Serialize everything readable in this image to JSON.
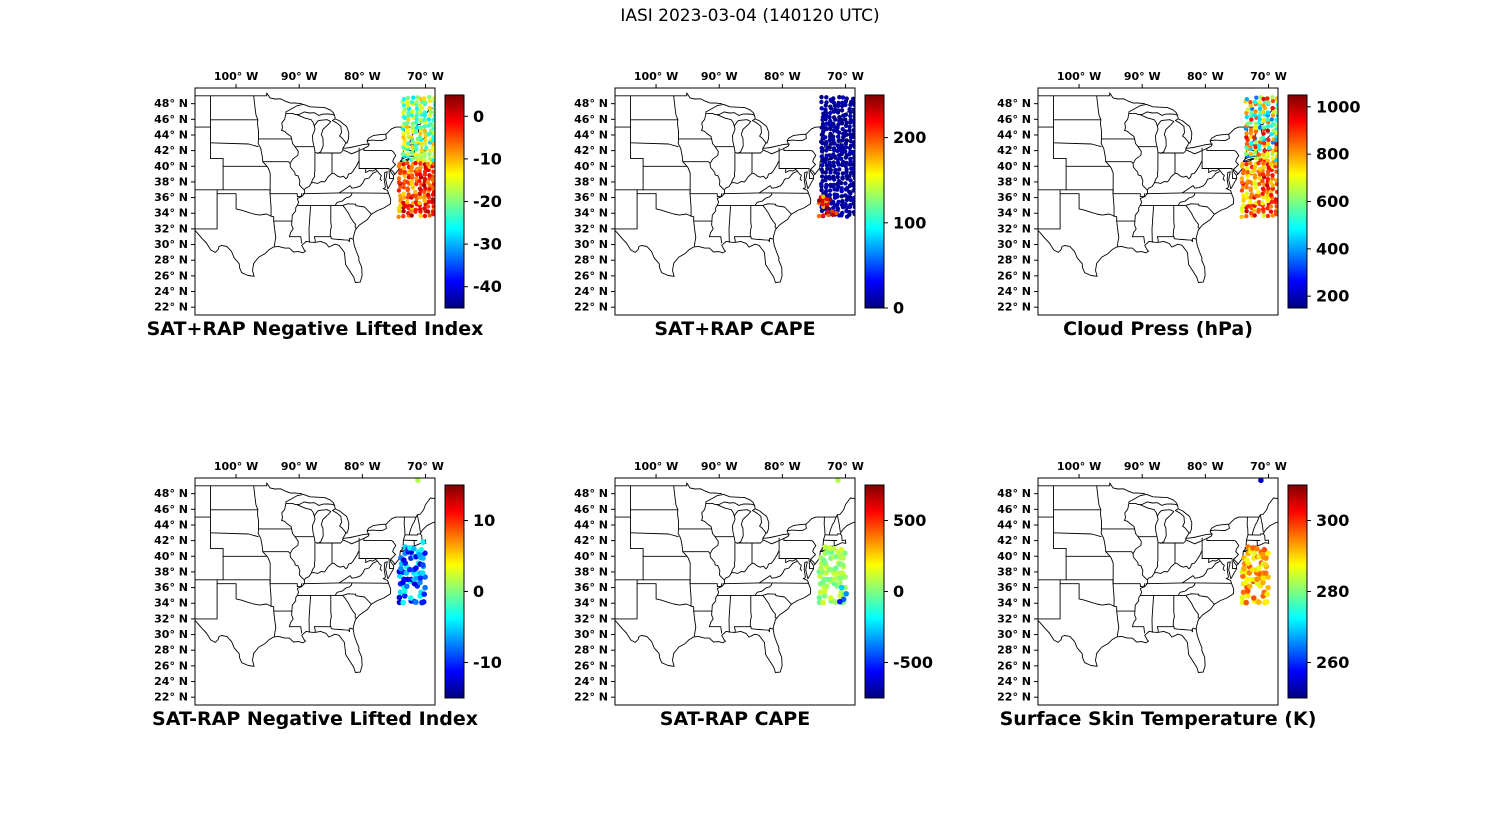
{
  "page": {
    "background": "#ffffff",
    "text_color": "#000000"
  },
  "chart_data": {
    "type": "scatter",
    "subtype": "geo-scatter-satellite-swath",
    "figure_title": "IASI 2023-03-04 (140120 UTC)",
    "colormap": "jet",
    "grid": {
      "rows": 2,
      "cols": 3
    },
    "map": {
      "lon_range": [
        -106.5,
        -68.5
      ],
      "lat_range": [
        21,
        50
      ],
      "lon_ticks": [
        {
          "value": -100,
          "label": "100° W"
        },
        {
          "value": -90,
          "label": "90° W"
        },
        {
          "value": -80,
          "label": "80° W"
        },
        {
          "value": -70,
          "label": "70° W"
        }
      ],
      "lat_ticks": [
        {
          "value": 48,
          "label": "48° N"
        },
        {
          "value": 46,
          "label": "46° N"
        },
        {
          "value": 44,
          "label": "44° N"
        },
        {
          "value": 42,
          "label": "42° N"
        },
        {
          "value": 40,
          "label": "40° N"
        },
        {
          "value": 38,
          "label": "38° N"
        },
        {
          "value": 36,
          "label": "36° N"
        },
        {
          "value": 34,
          "label": "34° N"
        },
        {
          "value": 32,
          "label": "32° N"
        },
        {
          "value": 30,
          "label": "30° N"
        },
        {
          "value": 28,
          "label": "28° N"
        },
        {
          "value": 26,
          "label": "26° N"
        },
        {
          "value": 24,
          "label": "24° N"
        },
        {
          "value": 22,
          "label": "22° N"
        }
      ]
    },
    "panels": [
      {
        "id": "sat-plus-rap-nli",
        "title": "SAT+RAP Negative Lifted Index",
        "row": 0,
        "col": 0,
        "dot_radius": 2.2,
        "colorbar": {
          "min": -45,
          "max": 5,
          "ticks": [
            0,
            -10,
            -20,
            -30,
            -40
          ]
        },
        "swaths": [
          {
            "lat": [
              40.5,
              48.9
            ],
            "lon": [
              -73.8,
              -68.3
            ],
            "rows": 19,
            "cols": 8,
            "jitter": 0.18,
            "drop": 0.07,
            "values": [
              -28,
              -10
            ]
          },
          {
            "lat": [
              33.5,
              40.5
            ],
            "lon": [
              -74.4,
              -68.5
            ],
            "rows": 16,
            "cols": 9,
            "jitter": 0.18,
            "drop": 0.07,
            "values": [
              -12,
              3
            ]
          }
        ],
        "extra_points": []
      },
      {
        "id": "sat-plus-rap-cape",
        "title": "SAT+RAP CAPE",
        "row": 0,
        "col": 1,
        "dot_radius": 2.2,
        "colorbar": {
          "min": 0,
          "max": 250,
          "ticks": [
            200,
            100,
            0
          ]
        },
        "swaths": [
          {
            "lat": [
              33.5,
              48.9
            ],
            "lon": [
              -74.0,
              -68.3
            ],
            "rows": 34,
            "cols": 9,
            "jitter": 0.18,
            "drop": 0.05,
            "values": [
              0,
              15
            ]
          },
          {
            "lat": [
              33.6,
              36.2
            ],
            "lon": [
              -74.3,
              -72.0
            ],
            "rows": 6,
            "cols": 4,
            "jitter": 0.2,
            "drop": 0.35,
            "values": [
              170,
              250
            ]
          }
        ],
        "extra_points": [
          [
            -71.5,
            34.0,
            200
          ],
          [
            -72.0,
            33.8,
            235
          ]
        ]
      },
      {
        "id": "cloud-press",
        "title": "Cloud Press (hPa)",
        "row": 0,
        "col": 2,
        "dot_radius": 2.2,
        "colorbar": {
          "min": 150,
          "max": 1050,
          "ticks": [
            1000,
            800,
            600,
            400,
            200
          ]
        },
        "swaths": [
          {
            "lat": [
              40.5,
              48.9
            ],
            "lon": [
              -73.8,
              -68.3
            ],
            "rows": 19,
            "cols": 8,
            "jitter": 0.18,
            "drop": 0.1,
            "values": [
              350,
              980
            ]
          },
          {
            "lat": [
              33.5,
              40.5
            ],
            "lon": [
              -74.4,
              -68.5
            ],
            "rows": 16,
            "cols": 9,
            "jitter": 0.18,
            "drop": 0.12,
            "values": [
              680,
              980
            ]
          }
        ],
        "extra_points": []
      },
      {
        "id": "sat-minus-rap-nli",
        "title": "SAT-RAP Negative Lifted Index",
        "row": 1,
        "col": 0,
        "dot_radius": 2.8,
        "colorbar": {
          "min": -15,
          "max": 15,
          "ticks": [
            10,
            0,
            -10
          ]
        },
        "swaths": [
          {
            "lat": [
              33.8,
              41.3
            ],
            "lon": [
              -74.2,
              -70.0
            ],
            "rows": 12,
            "cols": 8,
            "jitter": 0.22,
            "drop": 0.3,
            "values": [
              -13,
              -3
            ]
          }
        ],
        "extra_points": [
          [
            -71.2,
            49.7,
            1.5
          ],
          [
            -70.4,
            41.8,
            -4
          ]
        ]
      },
      {
        "id": "sat-minus-rap-cape",
        "title": "SAT-RAP CAPE",
        "row": 1,
        "col": 1,
        "dot_radius": 2.8,
        "colorbar": {
          "min": -750,
          "max": 750,
          "ticks": [
            500,
            0,
            -500
          ]
        },
        "swaths": [
          {
            "lat": [
              33.8,
              41.3
            ],
            "lon": [
              -74.2,
              -70.0
            ],
            "rows": 12,
            "cols": 8,
            "jitter": 0.22,
            "drop": 0.3,
            "values": [
              -40,
              130
            ]
          }
        ],
        "extra_points": [
          [
            -71.2,
            49.7,
            70
          ],
          [
            -70.3,
            34.5,
            -430
          ],
          [
            -69.9,
            35.2,
            -350
          ],
          [
            -70.9,
            34.2,
            -520
          ],
          [
            -70.6,
            36.0,
            -260
          ]
        ]
      },
      {
        "id": "surface-skin-temperature",
        "title": "Surface Skin Temperature (K)",
        "row": 1,
        "col": 2,
        "dot_radius": 2.8,
        "colorbar": {
          "min": 250,
          "max": 310,
          "ticks": [
            300,
            280,
            260
          ]
        },
        "swaths": [
          {
            "lat": [
              33.8,
              41.3
            ],
            "lon": [
              -74.2,
              -70.0
            ],
            "rows": 12,
            "cols": 8,
            "jitter": 0.22,
            "drop": 0.3,
            "values": [
              285,
              298
            ]
          }
        ],
        "extra_points": [
          [
            -71.2,
            49.7,
            254
          ]
        ]
      }
    ]
  }
}
